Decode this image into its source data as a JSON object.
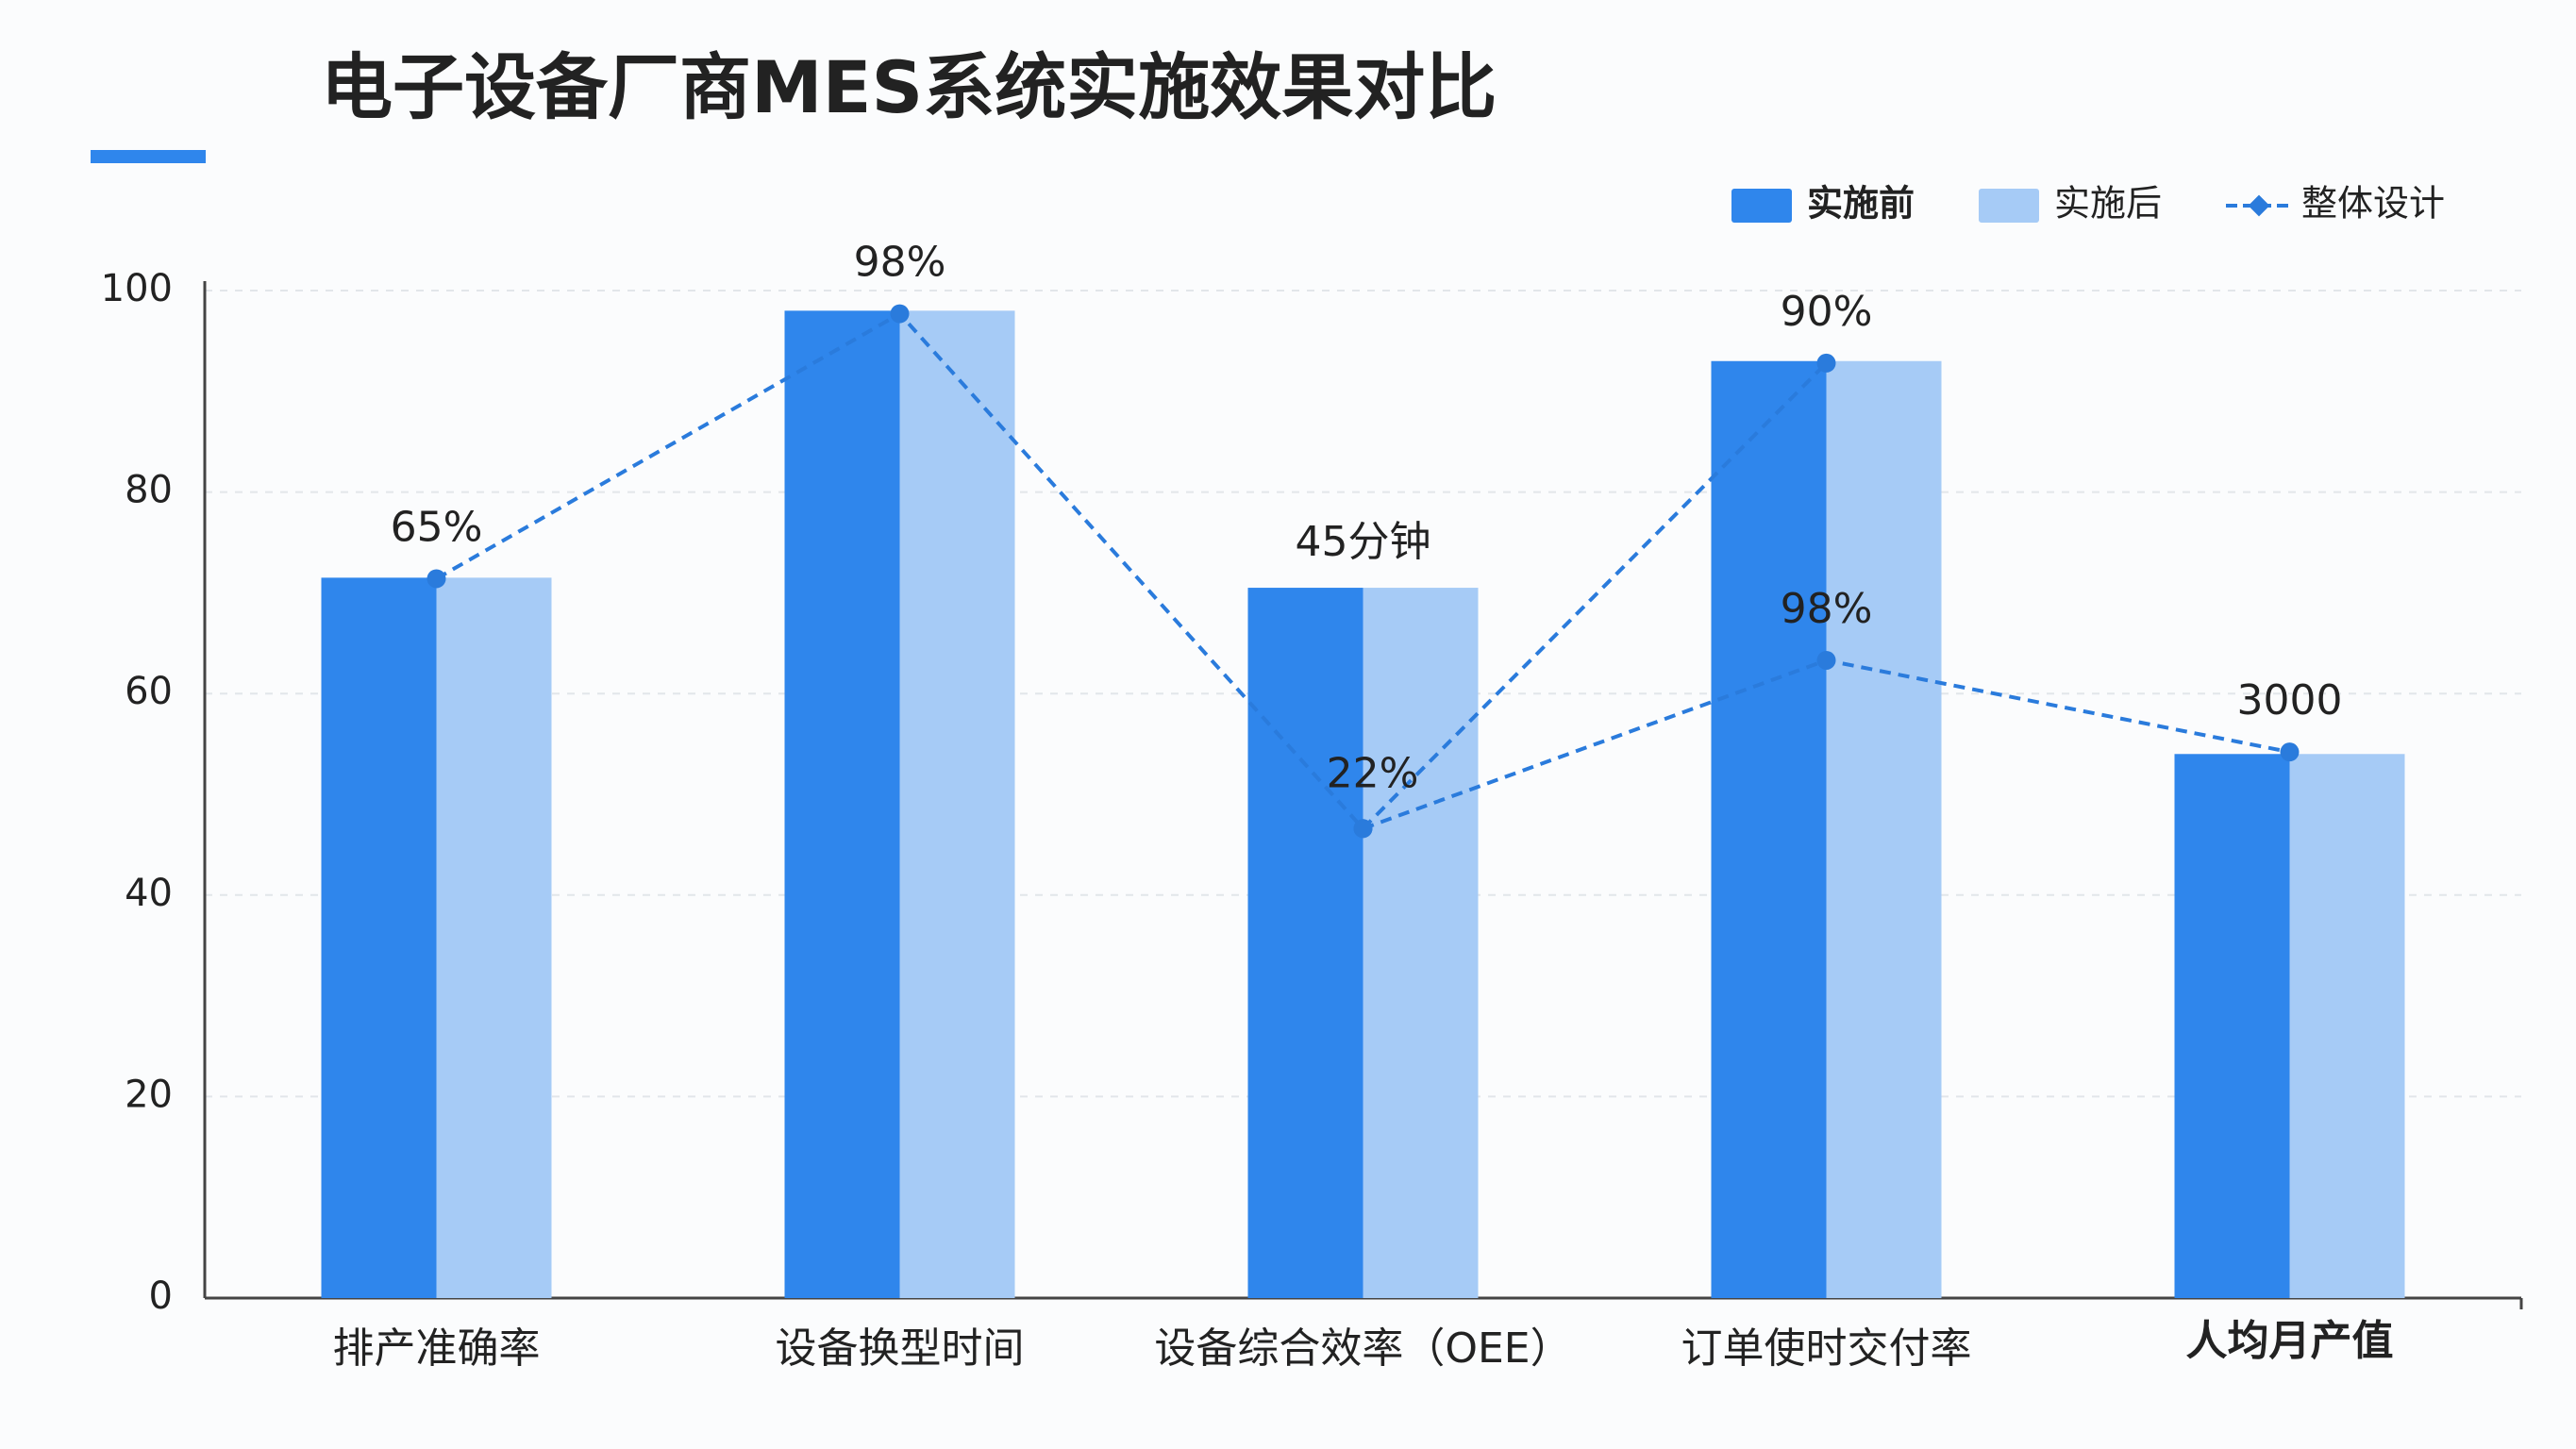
{
  "chart_data": {
    "type": "bar",
    "title": "电子设备厂商MES系统实施效果对比",
    "categories": [
      "排产准确率",
      "设备换型时间",
      "设备综合效率（OEE）",
      "订单使时交付率",
      "人均月产值"
    ],
    "series": [
      {
        "name": "实施前",
        "color": "#2f86ec",
        "values": [
          71.5,
          98,
          70.5,
          93,
          54
        ],
        "point_labels": [
          null,
          null,
          "45分钟",
          null,
          null
        ]
      },
      {
        "name": "实施后",
        "color": "#a6cbf6",
        "values": [
          71.5,
          98,
          70.5,
          93,
          54
        ]
      },
      {
        "name": "整体设计",
        "type": "line",
        "color": "#2a7bdc",
        "values": [
          71.4,
          97.7,
          46.6,
          92.8,
          null
        ],
        "point_labels": [
          "65%",
          "98%",
          "22%",
          "90%",
          null
        ]
      },
      {
        "name": "整体设计",
        "type": "line",
        "color": "#2a7bdc",
        "values": [
          null,
          null,
          46.6,
          63.3,
          54.2
        ],
        "point_labels": [
          null,
          null,
          null,
          "98%",
          "3000"
        ]
      }
    ],
    "ylim": [
      0,
      100
    ],
    "yticks": [
      0,
      20,
      40,
      60,
      80,
      100
    ],
    "grid": true,
    "legend": "top-right"
  }
}
